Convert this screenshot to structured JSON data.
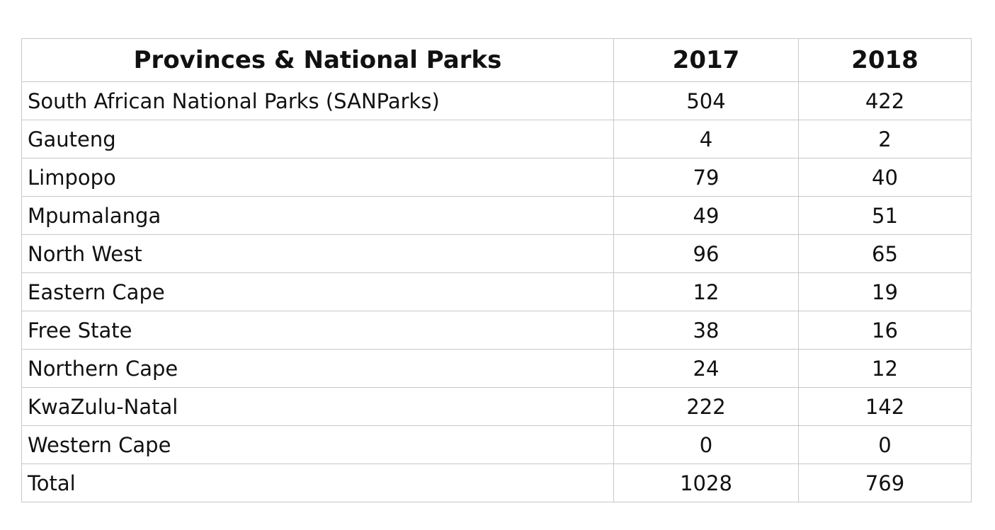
{
  "table": {
    "headers": [
      "Provinces & National Parks",
      "2017",
      "2018"
    ],
    "rows": [
      {
        "name": "South African National Parks (SANParks)",
        "y2017": "504",
        "y2018": "422"
      },
      {
        "name": "Gauteng",
        "y2017": "4",
        "y2018": "2"
      },
      {
        "name": "Limpopo",
        "y2017": "79",
        "y2018": "40"
      },
      {
        "name": "Mpumalanga",
        "y2017": "49",
        "y2018": "51"
      },
      {
        "name": "North West",
        "y2017": "96",
        "y2018": "65"
      },
      {
        "name": "Eastern Cape",
        "y2017": "12",
        "y2018": "19"
      },
      {
        "name": "Free State",
        "y2017": "38",
        "y2018": "16"
      },
      {
        "name": "Northern Cape",
        "y2017": "24",
        "y2018": "12"
      },
      {
        "name": "KwaZulu-Natal",
        "y2017": "222",
        "y2018": "142"
      },
      {
        "name": "Western Cape",
        "y2017": "0",
        "y2018": "0"
      },
      {
        "name": "Total",
        "y2017": "1028",
        "y2018": "769"
      }
    ]
  }
}
